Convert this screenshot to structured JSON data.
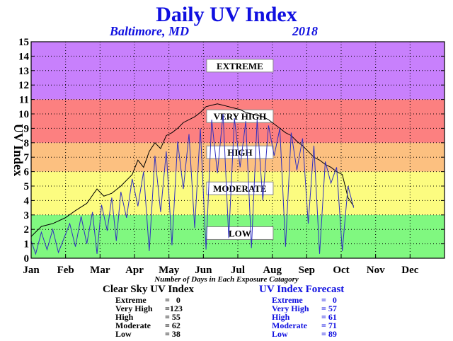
{
  "chart_data": {
    "type": "line",
    "title": "Daily UV Index",
    "subtitle_location": "Baltimore, MD",
    "subtitle_year": "2018",
    "ylabel": "UV Index",
    "xlabel": "",
    "ylim": [
      0,
      15
    ],
    "xlim": [
      1,
      365
    ],
    "yticks": [
      0,
      1,
      2,
      3,
      4,
      5,
      6,
      7,
      8,
      9,
      10,
      11,
      12,
      13,
      14,
      15
    ],
    "months": [
      "Jan",
      "Feb",
      "Mar",
      "Apr",
      "May",
      "Jun",
      "Jul",
      "Aug",
      "Sep",
      "Oct",
      "Nov",
      "Dec"
    ],
    "grid": true,
    "bands": [
      {
        "label": "LOW",
        "from": 0,
        "to": 3,
        "color": "#80f880",
        "label_y": 1.3
      },
      {
        "label": "MODERATE",
        "from": 3,
        "to": 6,
        "color": "#fcfc80",
        "label_y": 4.4
      },
      {
        "label": "HIGH",
        "from": 6,
        "to": 8,
        "color": "#fcc080",
        "label_y": 6.9
      },
      {
        "label": "VERY HIGH",
        "from": 8,
        "to": 11,
        "color": "#fc8080",
        "label_y": 9.4
      },
      {
        "label": "EXTREME",
        "from": 11,
        "to": 15,
        "color": "#c880fc",
        "label_y": 12.9
      }
    ],
    "series": [
      {
        "name": "Clear Sky UV Index",
        "color": "#000000",
        "x": [
          1,
          10,
          20,
          31,
          40,
          50,
          59,
          65,
          72,
          80,
          90,
          95,
          100,
          105,
          110,
          115,
          120,
          125,
          130,
          135,
          140,
          145,
          150,
          155,
          160,
          165,
          170,
          175,
          180,
          185,
          190,
          195,
          200,
          205,
          210,
          215,
          220,
          225,
          230,
          235,
          240,
          245,
          250,
          255,
          260,
          265,
          270,
          275,
          280,
          285
        ],
        "values": [
          1.5,
          2.2,
          2.4,
          2.8,
          3.3,
          3.8,
          4.8,
          4.3,
          4.5,
          5.0,
          5.8,
          6.8,
          6.3,
          7.4,
          8.0,
          7.6,
          8.5,
          8.7,
          9.0,
          9.4,
          9.6,
          9.8,
          10.1,
          10.5,
          10.6,
          10.7,
          10.6,
          10.5,
          10.4,
          10.3,
          10.1,
          10.0,
          9.9,
          9.8,
          9.6,
          9.3,
          9.0,
          8.7,
          8.5,
          8.1,
          7.8,
          7.4,
          7.0,
          6.8,
          6.5,
          6.3,
          6.0,
          5.8,
          4.2,
          3.6
        ]
      },
      {
        "name": "UV Index Forecast",
        "color": "#3030c0",
        "x": [
          1,
          5,
          10,
          15,
          20,
          25,
          31,
          35,
          40,
          45,
          50,
          55,
          59,
          63,
          68,
          72,
          76,
          80,
          85,
          90,
          95,
          100,
          105,
          110,
          115,
          120,
          125,
          130,
          135,
          140,
          145,
          150,
          155,
          160,
          165,
          170,
          175,
          180,
          185,
          190,
          195,
          200,
          205,
          210,
          215,
          220,
          225,
          230,
          235,
          240,
          245,
          250,
          255,
          260,
          265,
          270,
          275,
          280,
          285
        ],
        "values": [
          1.2,
          0.3,
          1.8,
          0.6,
          2.0,
          0.4,
          1.6,
          2.4,
          0.8,
          2.9,
          1.0,
          3.2,
          0.3,
          3.7,
          1.9,
          4.2,
          1.2,
          4.6,
          2.8,
          5.5,
          3.6,
          6.0,
          0.5,
          7.1,
          3.2,
          7.4,
          0.9,
          8.1,
          4.8,
          8.6,
          2.1,
          9.0,
          0.6,
          9.6,
          5.9,
          10.0,
          1.4,
          9.7,
          6.3,
          9.5,
          0.7,
          9.6,
          4.0,
          9.2,
          7.1,
          9.0,
          0.8,
          8.7,
          6.1,
          8.3,
          2.4,
          7.8,
          0.3,
          6.7,
          5.2,
          6.3,
          0.5,
          5.0,
          3.5
        ]
      }
    ]
  },
  "caption": "Number of Days in Each Exposure Catagory",
  "legend_clear": {
    "title": "Clear Sky UV Index",
    "rows": [
      {
        "label": "Extreme",
        "value": "=   0"
      },
      {
        "label": "Very High",
        "value": "=123"
      },
      {
        "label": "High",
        "value": "= 55"
      },
      {
        "label": "Moderate",
        "value": "= 62"
      },
      {
        "label": "Low",
        "value": "= 38"
      }
    ]
  },
  "legend_forecast": {
    "title": "UV Index Forecast",
    "rows": [
      {
        "label": "Extreme",
        "value": "=   0"
      },
      {
        "label": "Very High",
        "value": "= 57"
      },
      {
        "label": "High",
        "value": "= 61"
      },
      {
        "label": "Moderate",
        "value": "= 71"
      },
      {
        "label": "Low",
        "value": "= 89"
      }
    ]
  }
}
